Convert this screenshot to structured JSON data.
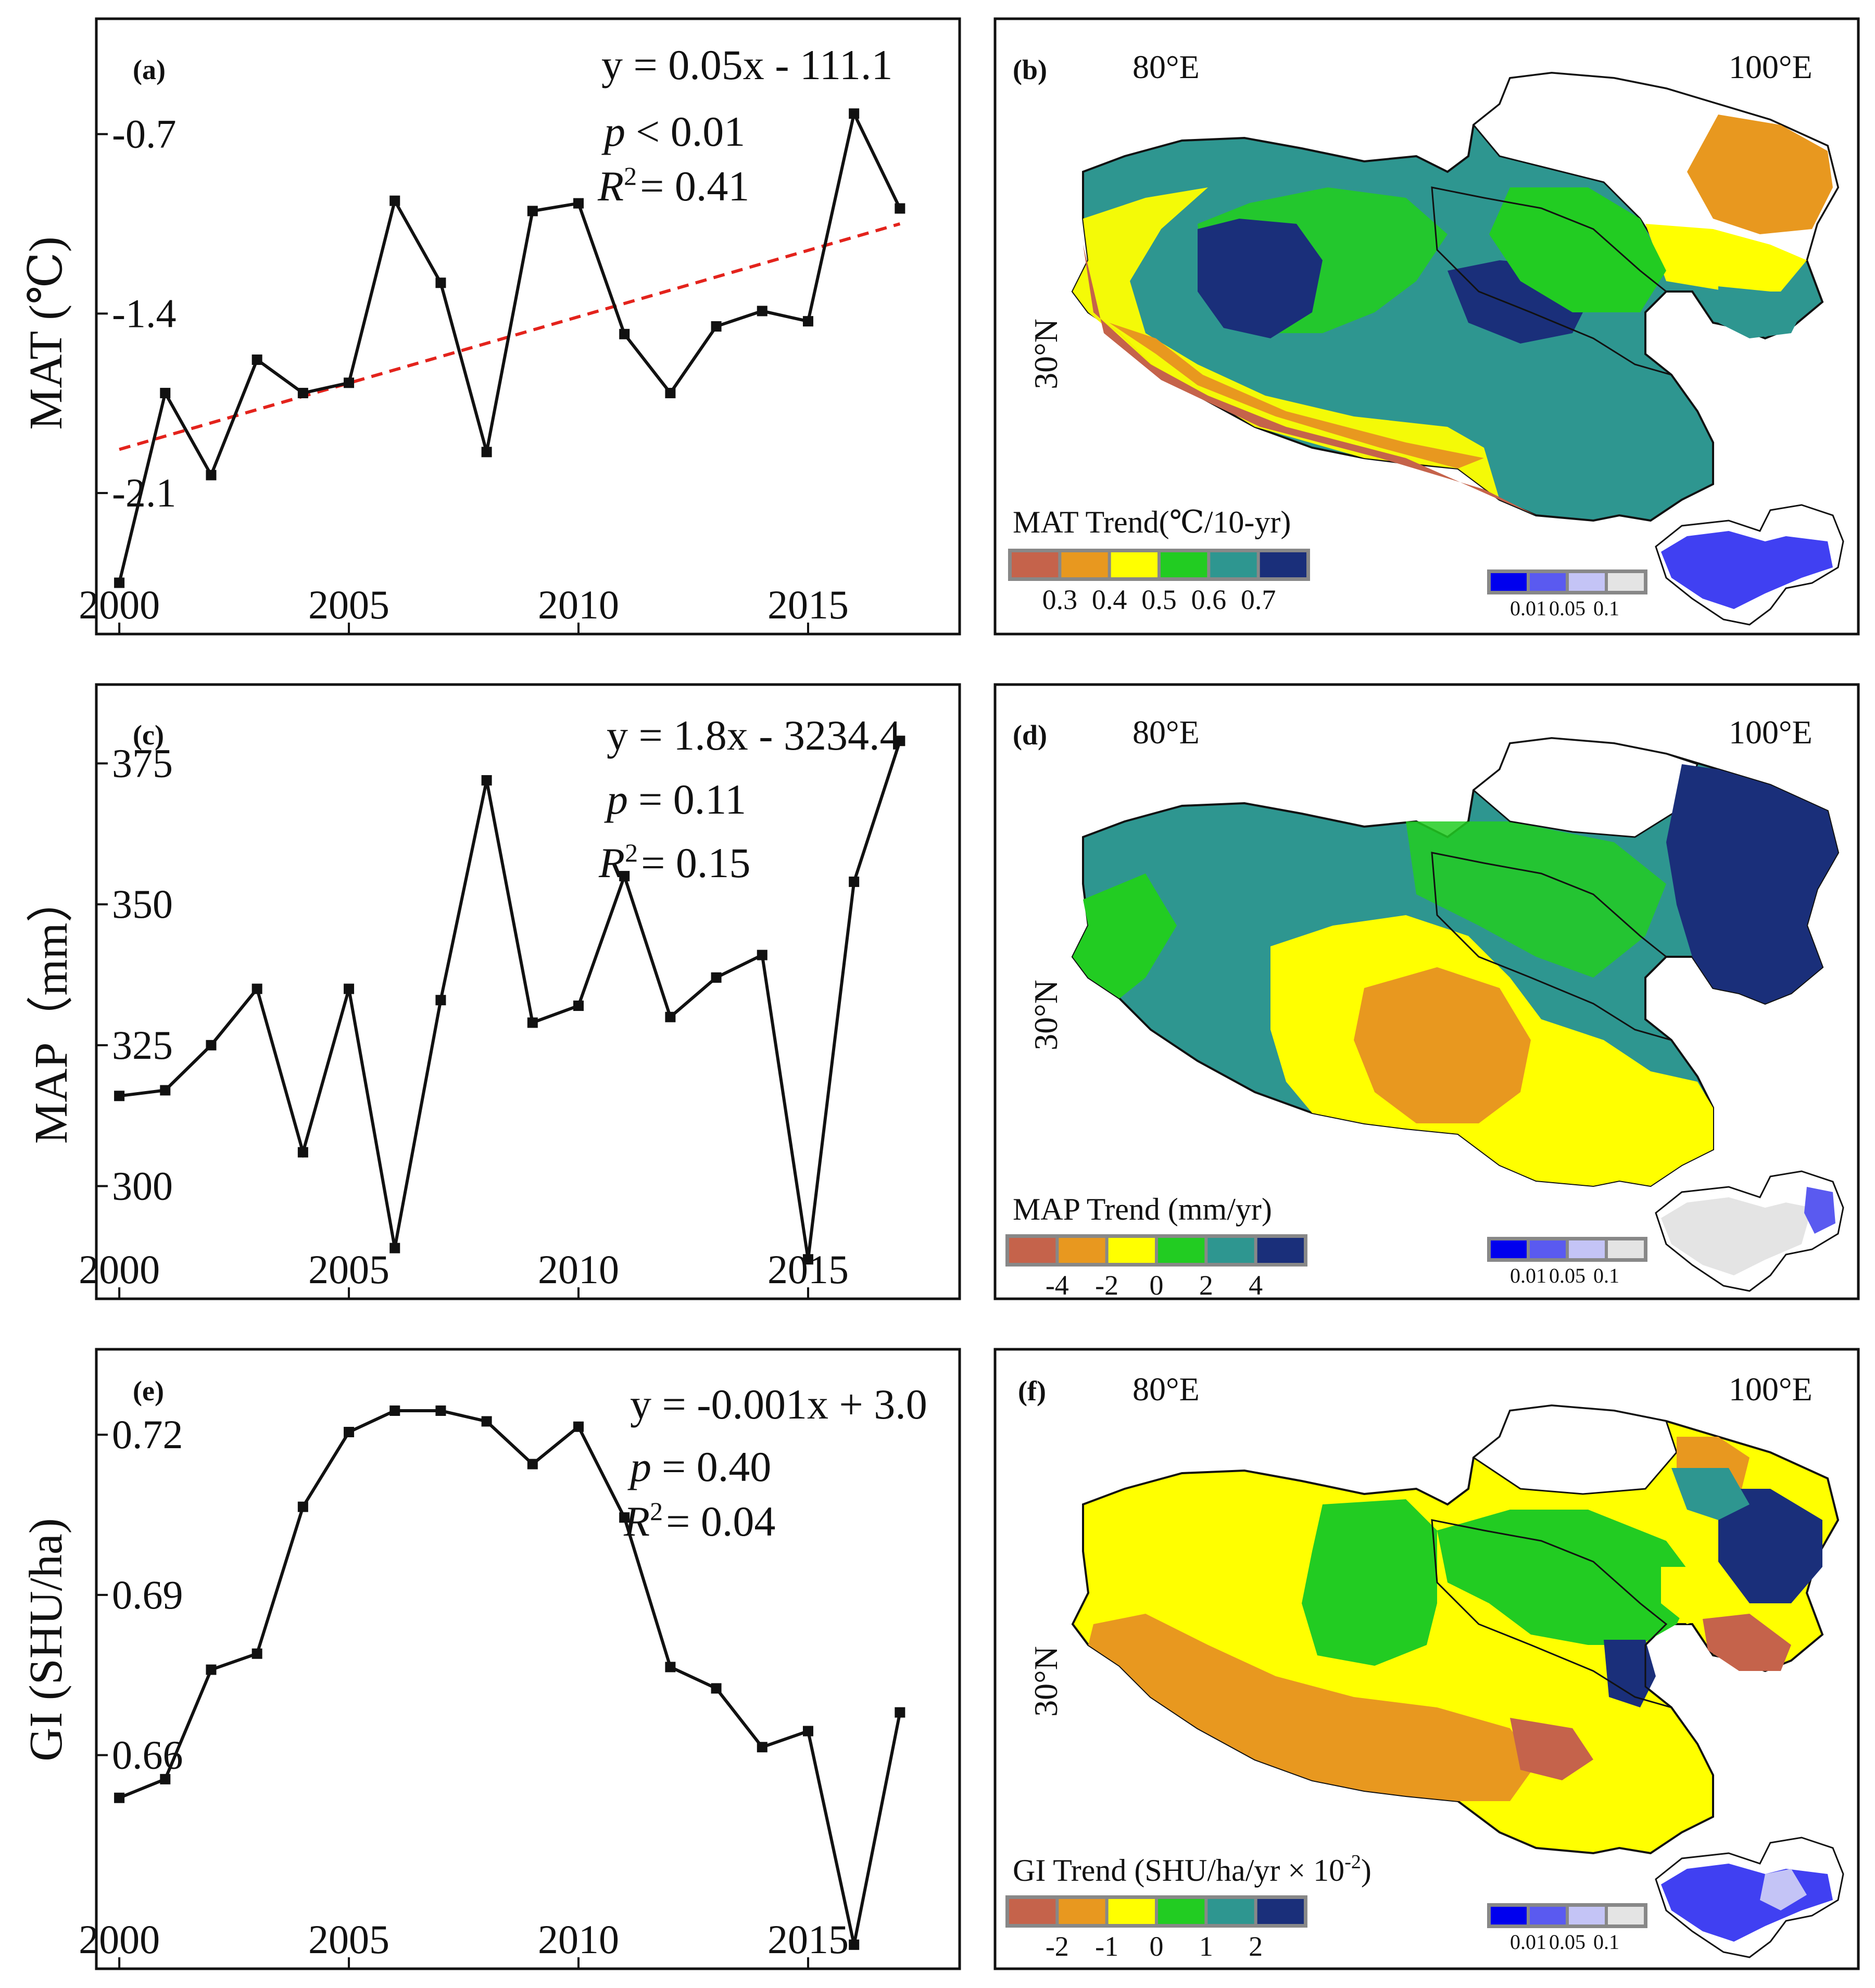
{
  "chart_data": [
    {
      "panel": "a",
      "panel_label": "(a)",
      "type": "line",
      "ylabel": "MAT (℃)",
      "x": [
        2000,
        2001,
        2002,
        2003,
        2004,
        2005,
        2006,
        2007,
        2008,
        2009,
        2010,
        2011,
        2012,
        2013,
        2014,
        2015,
        2016,
        2017
      ],
      "values": [
        -2.45,
        -1.71,
        -2.03,
        -1.58,
        -1.71,
        -1.67,
        -0.96,
        -1.28,
        -1.94,
        -1.0,
        -0.97,
        -1.48,
        -1.71,
        -1.45,
        -1.39,
        -1.43,
        -0.62,
        -0.99
      ],
      "xticks": [
        2000,
        2005,
        2010,
        2015
      ],
      "yticks": [
        -0.7,
        -1.4,
        -2.1
      ],
      "xlim": [
        1999.5,
        2018.3
      ],
      "ylim": [
        -2.65,
        -0.25
      ],
      "trend": {
        "x": [
          2000,
          2017
        ],
        "y": [
          -1.93,
          -1.05
        ]
      },
      "equation": "y = 0.05x - 111.1",
      "p_text": "< 0.01",
      "r2_text": "= 0.41"
    },
    {
      "panel": "c",
      "panel_label": "(c)",
      "type": "line",
      "ylabel": "MAP（mm）",
      "x": [
        2000,
        2001,
        2002,
        2003,
        2004,
        2005,
        2006,
        2007,
        2008,
        2009,
        2010,
        2011,
        2012,
        2013,
        2014,
        2015,
        2016,
        2017
      ],
      "values": [
        316,
        317,
        325,
        335,
        306,
        335,
        289,
        333,
        372,
        329,
        332,
        355,
        330,
        337,
        341,
        287,
        354,
        379
      ],
      "xticks": [
        2000,
        2005,
        2010,
        2015
      ],
      "yticks": [
        375,
        350,
        325,
        300
      ],
      "xlim": [
        1999.5,
        2018.3
      ],
      "ylim": [
        280,
        389
      ],
      "equation": "y = 1.8x - 3234.4",
      "p_text": "= 0.11",
      "r2_text": "= 0.15"
    },
    {
      "panel": "e",
      "panel_label": "(e)",
      "type": "line",
      "ylabel": "GI (SHU/ha)",
      "x": [
        2000,
        2001,
        2002,
        2003,
        2004,
        2005,
        2006,
        2007,
        2008,
        2009,
        2010,
        2011,
        2012,
        2013,
        2014,
        2015,
        2016,
        2017
      ],
      "values": [
        0.652,
        0.6555,
        0.676,
        0.679,
        0.7065,
        0.7205,
        0.7245,
        0.7245,
        0.7225,
        0.7145,
        0.7215,
        0.7045,
        0.6765,
        0.6725,
        0.6615,
        0.6645,
        0.6245,
        0.668
      ],
      "xticks": [
        2000,
        2005,
        2010,
        2015
      ],
      "yticks": [
        0.72,
        0.69,
        0.66
      ],
      "xlim": [
        1999.5,
        2018.3
      ],
      "ylim": [
        0.62,
        0.736
      ],
      "equation": "y = -0.001x + 3.0",
      "p_text": "= 0.40",
      "r2_text": "= 0.04"
    }
  ],
  "stat_symbols": {
    "p": "p",
    "r2_base": "R",
    "r2_exp": "2"
  },
  "maps": [
    {
      "panel": "b",
      "panel_label": "(b)",
      "lon_left": "80°E",
      "lon_right": "100°E",
      "lat": "30°N",
      "legend_title": "MAT Trend(℃/10-yr)",
      "legend_colors": [
        "#c5634b",
        "#e8981f",
        "#ffff00",
        "#22cc22",
        "#2e9690",
        "#1a2f7a"
      ],
      "legend_ticks": [
        "0.3",
        "0.4",
        "0.5",
        "0.6",
        "0.7"
      ],
      "sig_colors": [
        "#0000ee",
        "#5a5af0",
        "#c4c4f6",
        "#e4e4e4"
      ],
      "sig_ticks": [
        "0.01",
        "0.05",
        "0.1"
      ]
    },
    {
      "panel": "d",
      "panel_label": "(d)",
      "lon_left": "80°E",
      "lon_right": "100°E",
      "lat": "30°N",
      "legend_title": "MAP Trend (mm/yr)",
      "legend_colors": [
        "#c5634b",
        "#e8981f",
        "#ffff00",
        "#22cc22",
        "#2e9690",
        "#1a2f7a"
      ],
      "legend_ticks": [
        "-4",
        "-2",
        "0",
        "2",
        "4"
      ],
      "sig_colors": [
        "#0000ee",
        "#5a5af0",
        "#c4c4f6",
        "#e4e4e4"
      ],
      "sig_ticks": [
        "0.01",
        "0.05",
        "0.1"
      ]
    },
    {
      "panel": "f",
      "panel_label": "(f)",
      "lon_left": "80°E",
      "lon_right": "100°E",
      "lat": "30°N",
      "legend_title": "GI Trend (SHU/ha/yr × 10",
      "legend_title_sup": "-2",
      "legend_title_end": ")",
      "legend_colors": [
        "#c5634b",
        "#e8981f",
        "#ffff00",
        "#22cc22",
        "#2e9690",
        "#1a2f7a"
      ],
      "legend_ticks": [
        "-2",
        "-1",
        "0",
        "1",
        "2"
      ],
      "sig_colors": [
        "#0000ee",
        "#5a5af0",
        "#c4c4f6",
        "#e4e4e4"
      ],
      "sig_ticks": [
        "0.01",
        "0.05",
        "0.1"
      ]
    }
  ]
}
